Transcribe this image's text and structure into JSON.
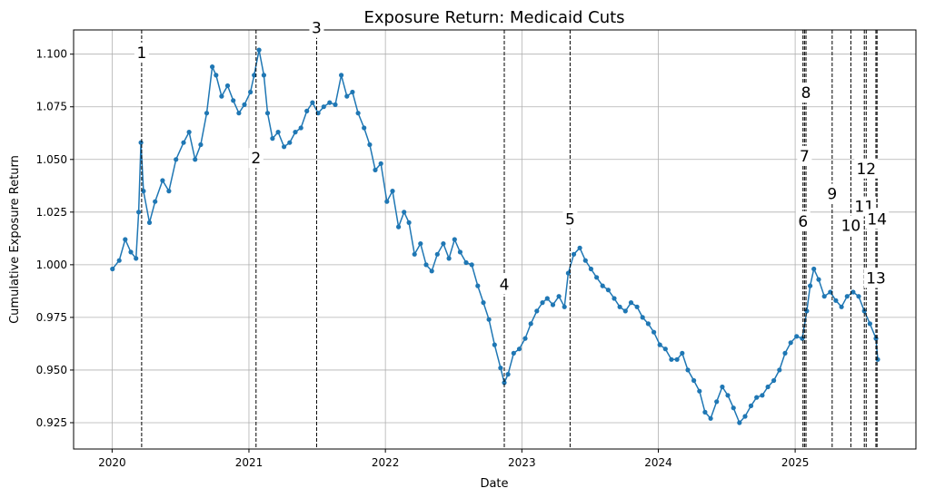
{
  "chart_data": {
    "type": "line",
    "title": "Exposure Return: Medicaid Cuts",
    "xlabel": "Date",
    "ylabel": "Cumulative Exposure Return",
    "xlim": [
      "2019-09-20",
      "2025-11-20"
    ],
    "ylim": [
      0.9125,
      1.1115
    ],
    "grid": true,
    "line_color": "#1f77b4",
    "marker": "circle",
    "x_ticks": [
      {
        "label": "2020",
        "date": "2020-01-01"
      },
      {
        "label": "2021",
        "date": "2021-01-01"
      },
      {
        "label": "2022",
        "date": "2022-01-01"
      },
      {
        "label": "2023",
        "date": "2023-01-01"
      },
      {
        "label": "2024",
        "date": "2024-01-01"
      },
      {
        "label": "2025",
        "date": "2025-01-01"
      }
    ],
    "y_ticks": [
      {
        "label": "0.925",
        "value": 0.925
      },
      {
        "label": "0.950",
        "value": 0.95
      },
      {
        "label": "0.975",
        "value": 0.975
      },
      {
        "label": "1.000",
        "value": 1.0
      },
      {
        "label": "1.025",
        "value": 1.025
      },
      {
        "label": "1.050",
        "value": 1.05
      },
      {
        "label": "1.075",
        "value": 1.075
      },
      {
        "label": "1.100",
        "value": 1.1
      }
    ],
    "series": [
      {
        "x": [
          "2020-01-02",
          "2020-01-20",
          "2020-02-05",
          "2020-02-20",
          "2020-03-05",
          "2020-03-12",
          "2020-03-18",
          "2020-03-25",
          "2020-04-10",
          "2020-04-25",
          "2020-05-15",
          "2020-06-01",
          "2020-06-20",
          "2020-07-10",
          "2020-07-25",
          "2020-08-10",
          "2020-08-25",
          "2020-09-10",
          "2020-09-25",
          "2020-10-05",
          "2020-10-20",
          "2020-11-05",
          "2020-11-20",
          "2020-12-05",
          "2020-12-20",
          "2021-01-05",
          "2021-01-15",
          "2021-01-28",
          "2021-02-10",
          "2021-02-20",
          "2021-03-05",
          "2021-03-20",
          "2021-04-05",
          "2021-04-20",
          "2021-05-05",
          "2021-05-20",
          "2021-06-05",
          "2021-06-20",
          "2021-07-05",
          "2021-07-20",
          "2021-08-05",
          "2021-08-20",
          "2021-09-05",
          "2021-09-20",
          "2021-10-05",
          "2021-10-20",
          "2021-11-05",
          "2021-11-20",
          "2021-12-05",
          "2021-12-20",
          "2022-01-05",
          "2022-01-20",
          "2022-02-05",
          "2022-02-20",
          "2022-03-05",
          "2022-03-20",
          "2022-04-05",
          "2022-04-20",
          "2022-05-05",
          "2022-05-20",
          "2022-06-05",
          "2022-06-20",
          "2022-07-05",
          "2022-07-20",
          "2022-08-05",
          "2022-08-20",
          "2022-09-05",
          "2022-09-20",
          "2022-10-05",
          "2022-10-20",
          "2022-11-05",
          "2022-11-15",
          "2022-11-25",
          "2022-12-10",
          "2022-12-25",
          "2023-01-10",
          "2023-01-25",
          "2023-02-10",
          "2023-02-25",
          "2023-03-10",
          "2023-03-25",
          "2023-04-10",
          "2023-04-25",
          "2023-05-05",
          "2023-05-20",
          "2023-06-05",
          "2023-06-20",
          "2023-07-05",
          "2023-07-20",
          "2023-08-05",
          "2023-08-20",
          "2023-09-05",
          "2023-09-20",
          "2023-10-05",
          "2023-10-20",
          "2023-11-05",
          "2023-11-20",
          "2023-12-05",
          "2023-12-20",
          "2024-01-05",
          "2024-01-20",
          "2024-02-05",
          "2024-02-20",
          "2024-03-05",
          "2024-03-20",
          "2024-04-05",
          "2024-04-20",
          "2024-05-05",
          "2024-05-20",
          "2024-06-05",
          "2024-06-20",
          "2024-07-05",
          "2024-07-20",
          "2024-08-05",
          "2024-08-20",
          "2024-09-05",
          "2024-09-20",
          "2024-10-05",
          "2024-10-20",
          "2024-11-05",
          "2024-11-20",
          "2024-12-05",
          "2024-12-20",
          "2025-01-05",
          "2025-01-20",
          "2025-02-01",
          "2025-02-10",
          "2025-02-20",
          "2025-03-05",
          "2025-03-20",
          "2025-04-05",
          "2025-04-20",
          "2025-05-05",
          "2025-05-20",
          "2025-06-05",
          "2025-06-20",
          "2025-07-05",
          "2025-07-20",
          "2025-08-05",
          "2025-08-10"
        ],
        "y": [
          0.998,
          1.002,
          1.012,
          1.006,
          1.003,
          1.025,
          1.058,
          1.035,
          1.02,
          1.03,
          1.04,
          1.035,
          1.05,
          1.058,
          1.063,
          1.05,
          1.057,
          1.072,
          1.094,
          1.09,
          1.08,
          1.085,
          1.078,
          1.072,
          1.076,
          1.082,
          1.09,
          1.102,
          1.09,
          1.072,
          1.06,
          1.063,
          1.056,
          1.058,
          1.063,
          1.065,
          1.073,
          1.077,
          1.072,
          1.075,
          1.077,
          1.076,
          1.09,
          1.08,
          1.082,
          1.072,
          1.065,
          1.057,
          1.045,
          1.048,
          1.03,
          1.035,
          1.018,
          1.025,
          1.02,
          1.005,
          1.01,
          1.0,
          0.997,
          1.005,
          1.01,
          1.003,
          1.012,
          1.006,
          1.001,
          1.0,
          0.99,
          0.982,
          0.974,
          0.962,
          0.951,
          0.944,
          0.948,
          0.958,
          0.96,
          0.965,
          0.972,
          0.978,
          0.982,
          0.984,
          0.981,
          0.985,
          0.98,
          0.996,
          1.005,
          1.008,
          1.002,
          0.998,
          0.994,
          0.99,
          0.988,
          0.984,
          0.98,
          0.978,
          0.982,
          0.98,
          0.975,
          0.972,
          0.968,
          0.962,
          0.96,
          0.955,
          0.955,
          0.958,
          0.95,
          0.945,
          0.94,
          0.93,
          0.927,
          0.935,
          0.942,
          0.938,
          0.932,
          0.925,
          0.928,
          0.933,
          0.937,
          0.938,
          0.942,
          0.945,
          0.95,
          0.958,
          0.963,
          0.966,
          0.965,
          0.978,
          0.99,
          0.998,
          0.993,
          0.985,
          0.987,
          0.983,
          0.98,
          0.985,
          0.987,
          0.985,
          0.978,
          0.972,
          0.965,
          0.955
        ]
      }
    ],
    "events": [
      {
        "label": "1",
        "date": "2020-03-20",
        "label_y": 1.1007
      },
      {
        "label": "2",
        "date": "2021-01-20",
        "label_y": 1.0507
      },
      {
        "label": "3",
        "date": "2021-07-01",
        "label_y": 1.1125
      },
      {
        "label": "4",
        "date": "2022-11-15",
        "label_y": 0.9907
      },
      {
        "label": "5",
        "date": "2023-05-10",
        "label_y": 1.0217
      },
      {
        "label": "6",
        "date": "2025-01-22",
        "label_y": 1.0207
      },
      {
        "label": "7",
        "date": "2025-01-26",
        "label_y": 1.0517
      },
      {
        "label": "8",
        "date": "2025-01-30",
        "label_y": 1.0817
      },
      {
        "label": "9",
        "date": "2025-04-10",
        "label_y": 1.0337
      },
      {
        "label": "10",
        "date": "2025-05-30",
        "label_y": 1.0187
      },
      {
        "label": "11",
        "date": "2025-07-05",
        "label_y": 1.0277
      },
      {
        "label": "12",
        "date": "2025-07-10",
        "label_y": 1.0457
      },
      {
        "label": "13",
        "date": "2025-08-05",
        "label_y": 0.9937
      },
      {
        "label": "14",
        "date": "2025-08-08",
        "label_y": 1.0217
      }
    ]
  }
}
